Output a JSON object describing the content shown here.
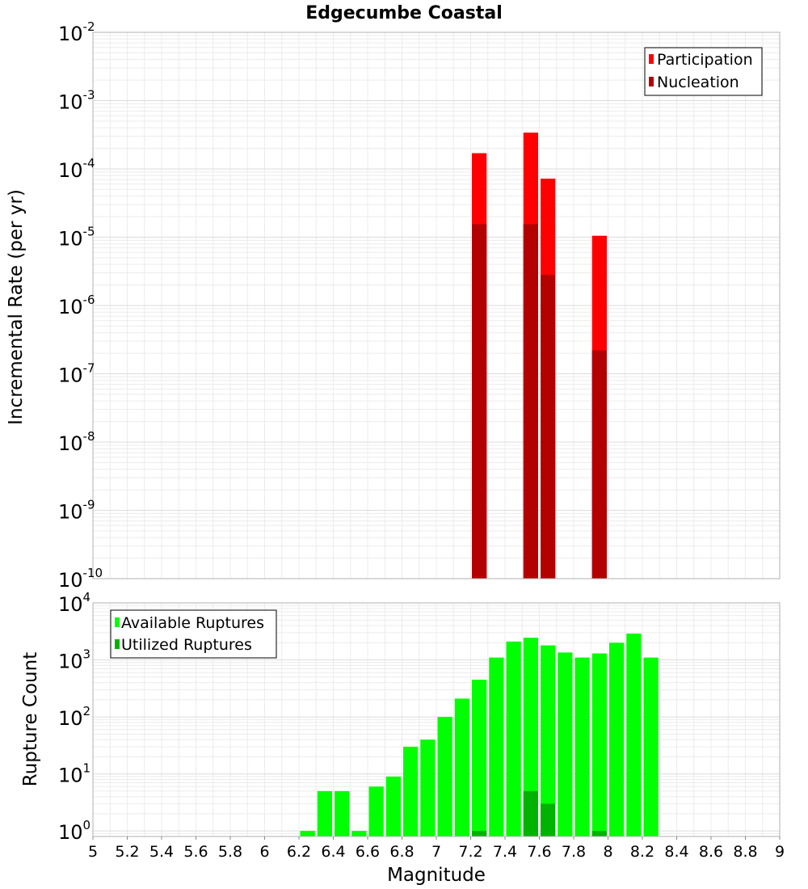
{
  "chart_data": [
    {
      "type": "bar",
      "title": "Edgecumbe Coastal",
      "xlabel": "",
      "ylabel": "Incremental Rate (per yr)",
      "yscale": "log",
      "ylim": [
        1e-10,
        0.01
      ],
      "xlim": [
        5,
        9
      ],
      "bar_width": 0.1,
      "grid": true,
      "legend_position": "top-right",
      "y_tick_exponents": [
        "-2",
        "-3",
        "-4",
        "-5",
        "-6",
        "-7",
        "-8",
        "-9",
        "-10"
      ],
      "series": [
        {
          "name": "Participation",
          "color": "#ff0000",
          "x": [
            7.25,
            7.55,
            7.65,
            7.95
          ],
          "values": [
            0.00017,
            0.00034,
            7.2e-05,
            1.05e-05
          ]
        },
        {
          "name": "Nucleation",
          "color": "#b30000",
          "x": [
            7.25,
            7.55,
            7.65,
            7.95
          ],
          "values": [
            1.55e-05,
            1.55e-05,
            2.8e-06,
            2.2e-07
          ]
        }
      ]
    },
    {
      "type": "bar",
      "title": "",
      "xlabel": "Magnitude",
      "ylabel": "Rupture Count",
      "yscale": "log",
      "ylim": [
        0.8,
        10000
      ],
      "xlim": [
        5,
        9
      ],
      "bar_width": 0.1,
      "grid": true,
      "legend_position": "top-left",
      "x_ticks": [
        "5",
        "5.2",
        "5.4",
        "5.6",
        "5.8",
        "6",
        "6.2",
        "6.4",
        "6.6",
        "6.8",
        "7",
        "7.2",
        "7.4",
        "7.6",
        "7.8",
        "8",
        "8.2",
        "8.4",
        "8.6",
        "8.8",
        "9"
      ],
      "y_tick_exponents": [
        "4",
        "3",
        "2",
        "1",
        "0"
      ],
      "series": [
        {
          "name": "Available Ruptures",
          "color": "#00ff00",
          "x": [
            6.25,
            6.35,
            6.45,
            6.55,
            6.65,
            6.75,
            6.85,
            6.95,
            7.05,
            7.15,
            7.25,
            7.35,
            7.45,
            7.55,
            7.65,
            7.75,
            7.85,
            7.95,
            8.05,
            8.15,
            8.25
          ],
          "values": [
            1,
            5,
            5,
            1,
            6,
            9,
            30,
            40,
            100,
            210,
            450,
            1100,
            2100,
            2450,
            1800,
            1350,
            1100,
            1300,
            2000,
            2900,
            1100
          ]
        },
        {
          "name": "Utilized Ruptures",
          "color": "#00b300",
          "x": [
            7.25,
            7.55,
            7.65,
            7.95
          ],
          "values": [
            1,
            5,
            3,
            1
          ]
        }
      ]
    }
  ]
}
